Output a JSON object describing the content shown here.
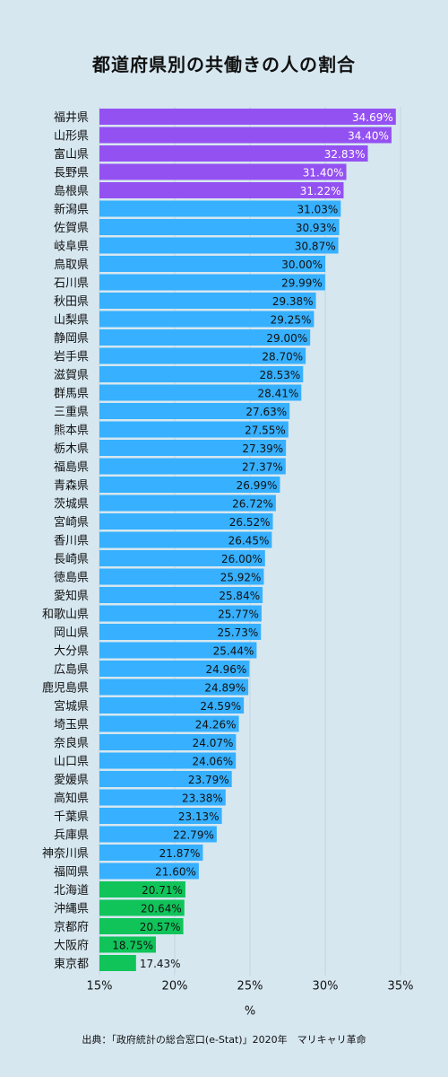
{
  "title": "都道府県別の共働きの人の割合",
  "source": "出典：「政府統計の総合窓口(e-Stat)」2020年　マリキャリ革命",
  "colors": {
    "top": "#9451f2",
    "middle": "#36b0ff",
    "bottom": "#10c45a",
    "background": "#d6e7f0"
  },
  "chart_data": {
    "type": "bar",
    "orientation": "horizontal",
    "xlabel": "%",
    "ylabel": "",
    "xlim": [
      15,
      35
    ],
    "xticks": [
      "15%",
      "20%",
      "25%",
      "30%",
      "35%"
    ],
    "grid": true,
    "categories": [
      "福井県",
      "山形県",
      "富山県",
      "長野県",
      "島根県",
      "新潟県",
      "佐賀県",
      "岐阜県",
      "鳥取県",
      "石川県",
      "秋田県",
      "山梨県",
      "静岡県",
      "岩手県",
      "滋賀県",
      "群馬県",
      "三重県",
      "熊本県",
      "栃木県",
      "福島県",
      "青森県",
      "茨城県",
      "宮崎県",
      "香川県",
      "長崎県",
      "徳島県",
      "愛知県",
      "和歌山県",
      "岡山県",
      "大分県",
      "広島県",
      "鹿児島県",
      "宮城県",
      "埼玉県",
      "奈良県",
      "山口県",
      "愛媛県",
      "高知県",
      "千葉県",
      "兵庫県",
      "神奈川県",
      "福岡県",
      "北海道",
      "沖縄県",
      "京都府",
      "大阪府",
      "東京都"
    ],
    "values": [
      34.69,
      34.4,
      32.83,
      31.4,
      31.22,
      31.03,
      30.93,
      30.87,
      30.0,
      29.99,
      29.38,
      29.25,
      29.0,
      28.7,
      28.53,
      28.41,
      27.63,
      27.55,
      27.39,
      27.37,
      26.99,
      26.72,
      26.52,
      26.45,
      26.0,
      25.92,
      25.84,
      25.77,
      25.73,
      25.44,
      24.96,
      24.89,
      24.59,
      24.26,
      24.07,
      24.06,
      23.79,
      23.38,
      23.13,
      22.79,
      21.87,
      21.6,
      20.71,
      20.64,
      20.57,
      18.75,
      17.43
    ],
    "labels": [
      "34.69%",
      "34.40%",
      "32.83%",
      "31.40%",
      "31.22%",
      "31.03%",
      "30.93%",
      "30.87%",
      "30.00%",
      "29.99%",
      "29.38%",
      "29.25%",
      "29.00%",
      "28.70%",
      "28.53%",
      "28.41%",
      "27.63%",
      "27.55%",
      "27.39%",
      "27.37%",
      "26.99%",
      "26.72%",
      "26.52%",
      "26.45%",
      "26.00%",
      "25.92%",
      "25.84%",
      "25.77%",
      "25.73%",
      "25.44%",
      "24.96%",
      "24.89%",
      "24.59%",
      "24.26%",
      "24.07%",
      "24.06%",
      "23.79%",
      "23.38%",
      "23.13%",
      "22.79%",
      "21.87%",
      "21.60%",
      "20.71%",
      "20.64%",
      "20.57%",
      "18.75%",
      "17.43%"
    ],
    "color_groups": [
      "top",
      "top",
      "top",
      "top",
      "top",
      "middle",
      "middle",
      "middle",
      "middle",
      "middle",
      "middle",
      "middle",
      "middle",
      "middle",
      "middle",
      "middle",
      "middle",
      "middle",
      "middle",
      "middle",
      "middle",
      "middle",
      "middle",
      "middle",
      "middle",
      "middle",
      "middle",
      "middle",
      "middle",
      "middle",
      "middle",
      "middle",
      "middle",
      "middle",
      "middle",
      "middle",
      "middle",
      "middle",
      "middle",
      "middle",
      "middle",
      "middle",
      "bottom",
      "bottom",
      "bottom",
      "bottom",
      "bottom"
    ]
  }
}
